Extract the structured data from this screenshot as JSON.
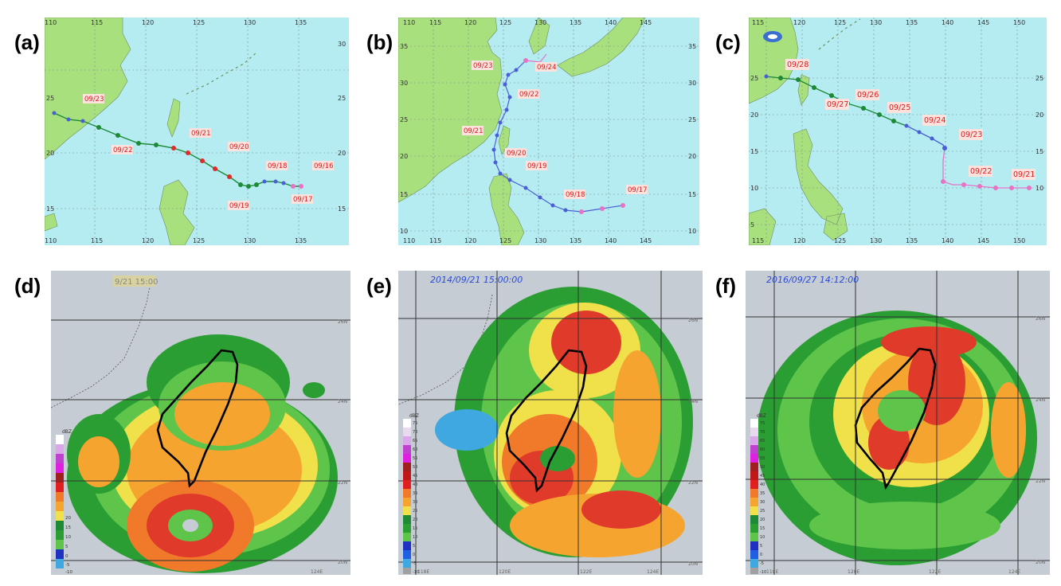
{
  "panel_labels": [
    "(a)",
    "(b)",
    "(c)",
    "(d)",
    "(e)",
    "(f)"
  ],
  "track_a": {
    "lon_ticks": [
      "110",
      "115",
      "120",
      "125",
      "130",
      "135"
    ],
    "lat_ticks_right": [
      "30",
      "25",
      "20",
      "15"
    ],
    "lat_ticks_left": [
      "25",
      "20",
      "15"
    ],
    "date_labels": [
      "09/23",
      "09/22",
      "09/21",
      "09/20",
      "09/19",
      "09/18",
      "09/17",
      "09/16"
    ]
  },
  "track_b": {
    "lon_ticks": [
      "110",
      "115",
      "120",
      "125",
      "130",
      "135",
      "140",
      "145"
    ],
    "lat_ticks_right": [
      "35",
      "30",
      "25",
      "20",
      "15",
      "10"
    ],
    "lat_ticks_left": [
      "35",
      "30",
      "25",
      "20",
      "15",
      "10"
    ],
    "date_labels": [
      "09/24",
      "09/23",
      "09/22",
      "09/21",
      "09/20",
      "09/19",
      "09/18",
      "09/17"
    ]
  },
  "track_c": {
    "lon_ticks": [
      "115",
      "120",
      "125",
      "130",
      "135",
      "140",
      "145",
      "150"
    ],
    "lat_ticks_right": [
      "25",
      "20",
      "15",
      "10"
    ],
    "lat_ticks_left": [
      "25",
      "20",
      "15",
      "10",
      "5"
    ],
    "date_labels": [
      "09/28",
      "09/27",
      "09/26",
      "09/25",
      "09/24",
      "09/23",
      "09/22",
      "09/21"
    ]
  },
  "radar_d": {
    "timestamp": "9/21 15:00",
    "legend_title": "dBZ",
    "legend_values": [
      "20",
      "15",
      "10",
      "5",
      "0",
      "-5",
      "-10"
    ],
    "grid_labels": [
      "26N",
      "24N",
      "22N",
      "20N",
      "124E"
    ]
  },
  "radar_e": {
    "timestamp": "2014/09/21 15:00:00",
    "legend_title": "dBZ",
    "legend_values": [
      "75",
      "70",
      "65",
      "60",
      "55",
      "50",
      "45",
      "40",
      "35",
      "30",
      "25",
      "20",
      "15",
      "10",
      "5",
      "0",
      "-5",
      "-10"
    ],
    "grid_labels": [
      "26N",
      "24N",
      "22N",
      "20N",
      "118E",
      "120E",
      "122E",
      "124E"
    ]
  },
  "radar_f": {
    "timestamp": "2016/09/27 14:12:00",
    "legend_title": "dBZ",
    "legend_values": [
      "75",
      "70",
      "65",
      "60",
      "55",
      "50",
      "45",
      "40",
      "35",
      "30",
      "25",
      "20",
      "15",
      "10",
      "5",
      "0",
      "-5",
      "-10"
    ],
    "grid_labels": [
      "26N",
      "24N",
      "22N",
      "20N",
      "118E",
      "120E",
      "122E",
      "124E"
    ]
  },
  "colors": {
    "ocean": "#b4ecf2",
    "land": "#a9e07e",
    "radar_bg": "#c6ccd3",
    "track_blue": "#4a5fd6",
    "track_green": "#1e8a36",
    "track_red": "#e02a2a",
    "track_pink": "#e873c4",
    "date_box": "#fde2de",
    "date_text": "#d81e1e",
    "timestamp": "#2a4ad8"
  }
}
